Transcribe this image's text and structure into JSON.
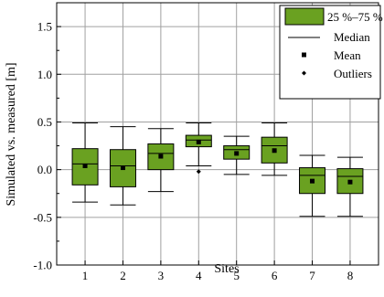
{
  "chart_data": {
    "type": "box",
    "xlabel": "Sites",
    "ylabel": "Simulated vs. measured [m]",
    "ylim": [
      -1.0,
      1.75
    ],
    "yticks": [
      "-1.0",
      "-0.5",
      "0.0",
      "0.5",
      "1.0",
      "1.5"
    ],
    "grid": true,
    "legend_position": "top-right",
    "colors": {
      "box_fill": "#6aa121",
      "box_edge": "#000000",
      "grid": "#a0a0a0"
    },
    "legend": {
      "box": "25 %–75 %",
      "median": "Median",
      "mean": "Mean",
      "outliers": "Outliers"
    },
    "categories": [
      "1",
      "2",
      "3",
      "4",
      "5",
      "6",
      "7",
      "8"
    ],
    "boxes": [
      {
        "site": "1",
        "whisker_low": -0.34,
        "q1": -0.16,
        "median": 0.06,
        "q3": 0.22,
        "whisker_high": 0.49,
        "mean": 0.04,
        "outliers": []
      },
      {
        "site": "2",
        "whisker_low": -0.37,
        "q1": -0.18,
        "median": 0.04,
        "q3": 0.21,
        "whisker_high": 0.45,
        "mean": 0.02,
        "outliers": []
      },
      {
        "site": "3",
        "whisker_low": -0.23,
        "q1": 0.0,
        "median": 0.17,
        "q3": 0.27,
        "whisker_high": 0.43,
        "mean": 0.14,
        "outliers": []
      },
      {
        "site": "4",
        "whisker_low": 0.04,
        "q1": 0.24,
        "median": 0.31,
        "q3": 0.36,
        "whisker_high": 0.49,
        "mean": 0.29,
        "outliers": [
          -0.02
        ]
      },
      {
        "site": "5",
        "whisker_low": -0.05,
        "q1": 0.11,
        "median": 0.21,
        "q3": 0.25,
        "whisker_high": 0.35,
        "mean": 0.17,
        "outliers": []
      },
      {
        "site": "6",
        "whisker_low": -0.06,
        "q1": 0.07,
        "median": 0.25,
        "q3": 0.34,
        "whisker_high": 0.49,
        "mean": 0.2,
        "outliers": []
      },
      {
        "site": "7",
        "whisker_low": -0.49,
        "q1": -0.25,
        "median": -0.06,
        "q3": 0.02,
        "whisker_high": 0.15,
        "mean": -0.12,
        "outliers": []
      },
      {
        "site": "8",
        "whisker_low": -0.49,
        "q1": -0.25,
        "median": -0.07,
        "q3": 0.01,
        "whisker_high": 0.13,
        "mean": -0.13,
        "outliers": []
      }
    ]
  }
}
